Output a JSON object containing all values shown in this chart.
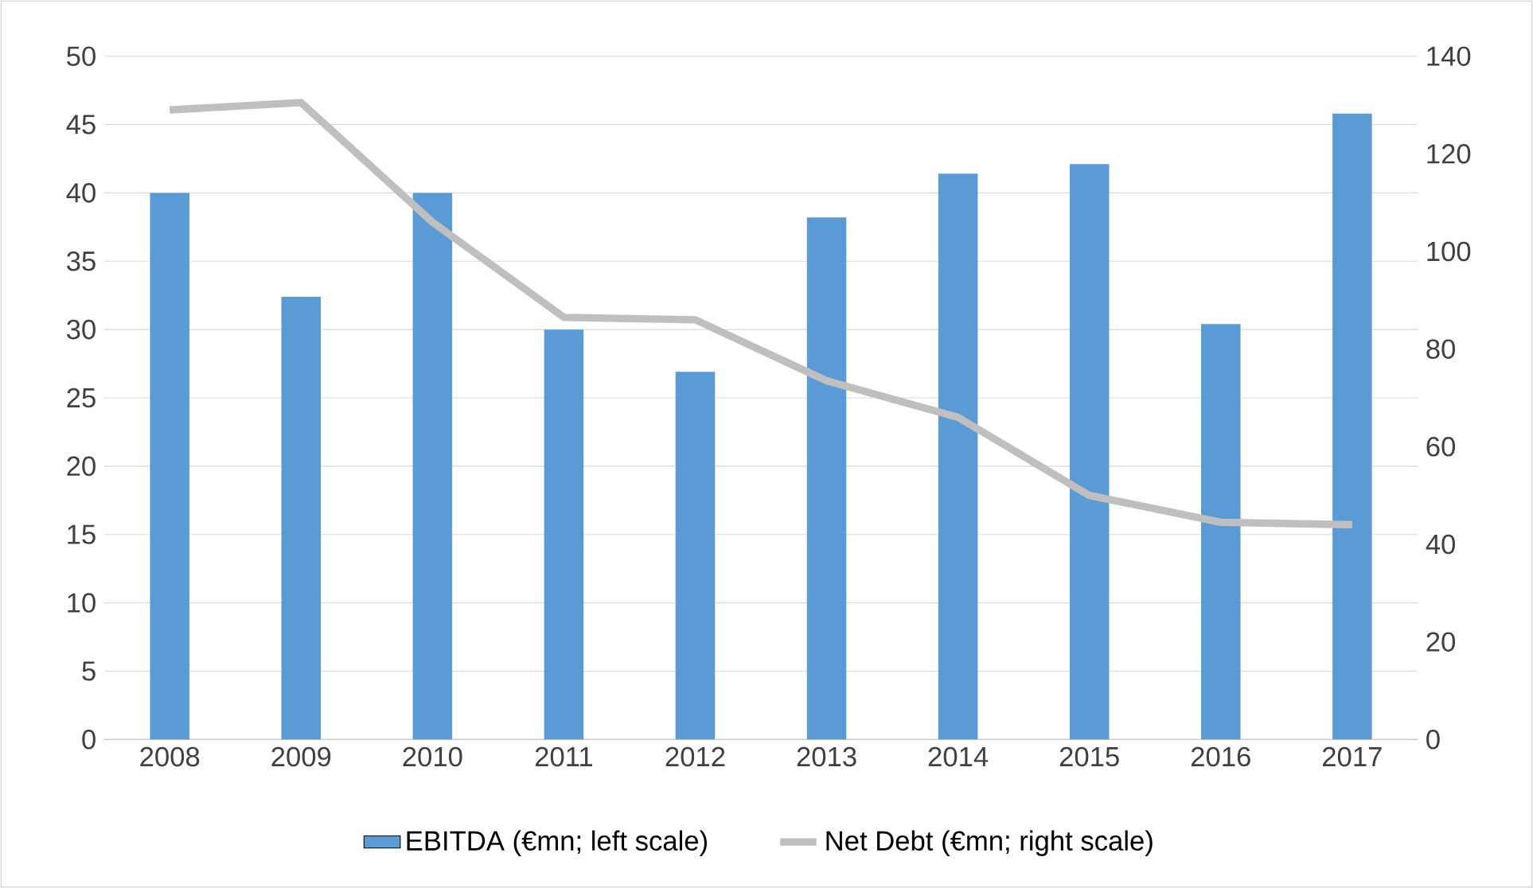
{
  "chart_data": {
    "type": "bar",
    "categories": [
      "2008",
      "2009",
      "2010",
      "2011",
      "2012",
      "2013",
      "2014",
      "2015",
      "2016",
      "2017"
    ],
    "series": [
      {
        "name": "EBITDA (€mn; left scale)",
        "color": "#5b9bd5",
        "values": [
          40.0,
          32.4,
          40.0,
          30.0,
          26.9,
          38.2,
          41.4,
          42.1,
          30.4,
          45.8
        ]
      },
      {
        "name": "Net Debt (€mn; right scale)",
        "type": "line",
        "axis": "y2",
        "color": "#bfbfbf",
        "values": [
          129,
          130.5,
          106,
          86.5,
          86,
          73.5,
          66,
          50,
          44.5,
          44
        ]
      }
    ],
    "ylim": [
      0,
      50
    ],
    "yticks": [
      0,
      5,
      10,
      15,
      20,
      25,
      30,
      35,
      40,
      45,
      50
    ],
    "y2lim": [
      0,
      140
    ],
    "y2ticks": [
      0,
      20,
      40,
      60,
      80,
      100,
      120,
      140
    ],
    "grid": "y",
    "legend": "bottom"
  }
}
